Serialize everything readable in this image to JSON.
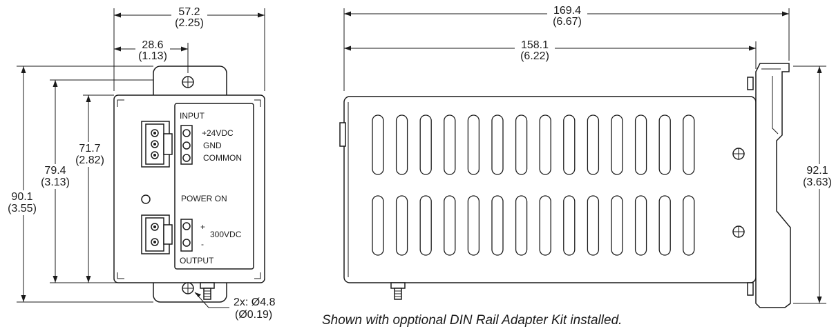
{
  "front_view": {
    "dims": {
      "width_total": {
        "mm": "57.2",
        "in": "(2.25)"
      },
      "hole_offset": {
        "mm": "28.6",
        "in": "(1.13)"
      },
      "height_front": {
        "mm": "71.7",
        "in": "(2.82)"
      },
      "height_body": {
        "mm": "79.4",
        "in": "(3.13)"
      },
      "height_total": {
        "mm": "90.1",
        "in": "(3.55)"
      },
      "hole_dia": {
        "mm": "2x: Ø4.8",
        "in": "(Ø0.19)"
      }
    },
    "labels": {
      "input": "INPUT",
      "v24": "+24VDC",
      "gnd": "GND",
      "common": "COMMON",
      "power_on": "POWER  ON",
      "plus": "+",
      "v300": "300VDC",
      "minus": "-",
      "output": "OUTPUT"
    }
  },
  "side_view": {
    "dims": {
      "length_total": {
        "mm": "169.4",
        "in": "(6.67)"
      },
      "length_body": {
        "mm": "158.1",
        "in": "(6.22)"
      },
      "height_rail": {
        "mm": "92.1",
        "in": "(3.63)"
      }
    }
  },
  "caption": "Shown with opptional DIN Rail Adapter Kit installed.",
  "icons": [
    "arrow-icon",
    "screw-icon",
    "led-icon",
    "terminal-icon",
    "connector-icon",
    "din-rail-icon",
    "bnc-connector-icon"
  ]
}
